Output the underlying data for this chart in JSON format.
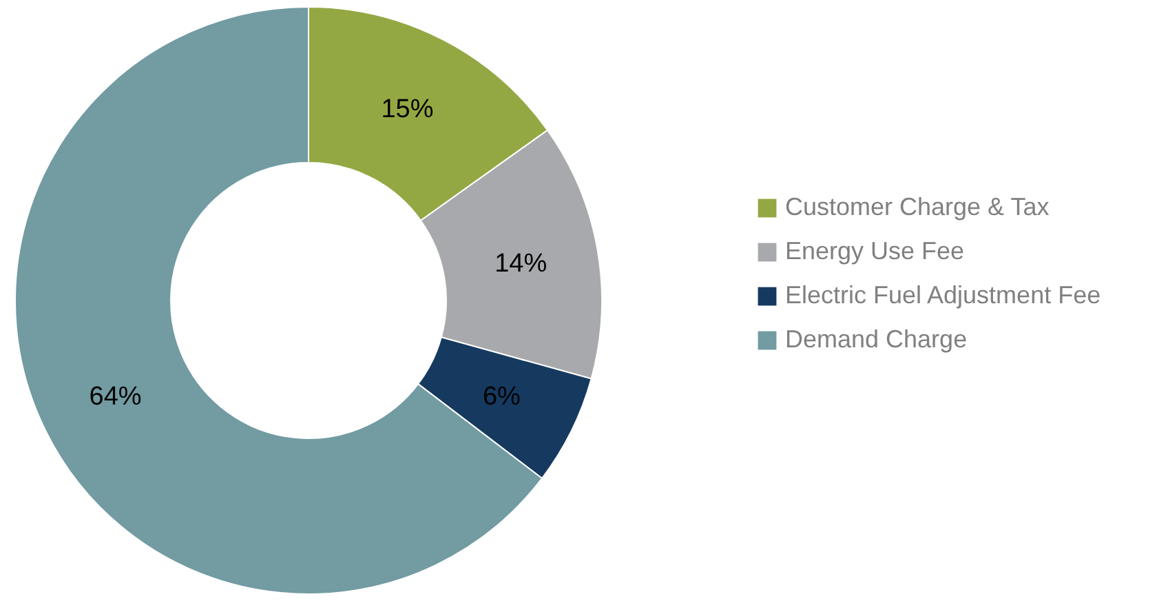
{
  "chart_data": {
    "type": "donut",
    "categories": [
      "Customer Charge & Tax",
      "Energy Use Fee",
      "Electric Fuel Adjustment Fee",
      "Demand Charge"
    ],
    "values": [
      15,
      14,
      6,
      64
    ],
    "colors": [
      "#93a843",
      "#a7a9ac",
      "#163a5f",
      "#729ba2"
    ],
    "value_labels": [
      "15%",
      "14%",
      "6%",
      "64%"
    ],
    "legend": "right"
  }
}
